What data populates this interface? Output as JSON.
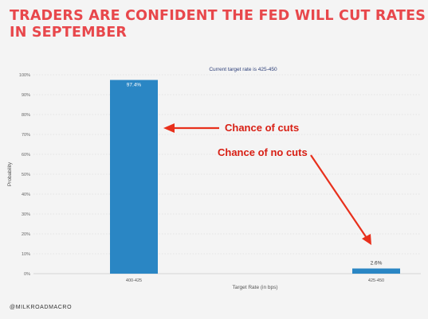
{
  "headline": {
    "line1": "TRADERS ARE CONFIDENT THE FED WILL CUT RATES",
    "line2": "IN SEPTEMBER"
  },
  "credit": "@MILKROADMACRO",
  "colors": {
    "headline": "#e8474b",
    "bar": "#2a86c4",
    "arrow": "#e8301c",
    "annotation_text": "#d81f14"
  },
  "annotations": {
    "cuts": "Chance of cuts",
    "no_cuts": "Chance of no cuts"
  },
  "chart_data": {
    "type": "bar",
    "title": "Current target rate is 425-450",
    "xlabel": "Target Rate (in bps)",
    "ylabel": "Probability",
    "categories": [
      "400-425",
      "425-450"
    ],
    "values": [
      97.4,
      2.6
    ],
    "data_labels": [
      "97.4%",
      "2.6%"
    ],
    "ylim": [
      0,
      100
    ],
    "yticks": [
      "0%",
      "10%",
      "20%",
      "30%",
      "40%",
      "50%",
      "60%",
      "70%",
      "80%",
      "90%",
      "100%"
    ],
    "grid": true
  }
}
